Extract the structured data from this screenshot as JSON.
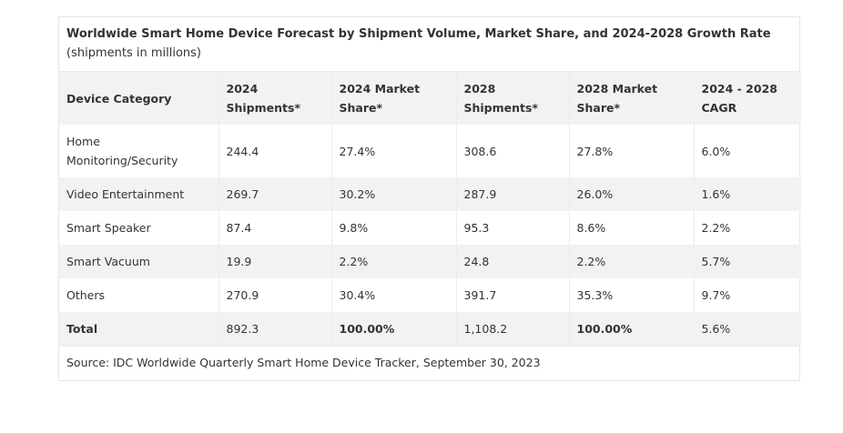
{
  "title": {
    "bold": "Worldwide Smart Home Device Forecast by Shipment Volume, Market Share, and 2024-2028 Growth Rate",
    "normal": " (shipments in millions)"
  },
  "headers": [
    "Device Category",
    "2024 Shipments*",
    "2024 Market Share*",
    "2028 Shipments*",
    "2028 Market Share*",
    "2024 - 2028 CAGR"
  ],
  "rows": [
    [
      "Home Monitoring/Security",
      "244.4",
      "27.4%",
      "308.6",
      "27.8%",
      "6.0%"
    ],
    [
      "Video Entertainment",
      "269.7",
      "30.2%",
      "287.9",
      "26.0%",
      "1.6%"
    ],
    [
      "Smart Speaker",
      "87.4",
      "9.8%",
      "95.3",
      "8.6%",
      "2.2%"
    ],
    [
      "Smart Vacuum",
      "19.9",
      "2.2%",
      "24.8",
      "2.2%",
      "5.7%"
    ],
    [
      "Others",
      "270.9",
      "30.4%",
      "391.7",
      "35.3%",
      "9.7%"
    ]
  ],
  "total": [
    "Total",
    "892.3",
    "100.00%",
    "1,108.2",
    "100.00%",
    "5.6%"
  ],
  "source": "Source: IDC Worldwide Quarterly Smart Home Device Tracker, September 30, 2023"
}
